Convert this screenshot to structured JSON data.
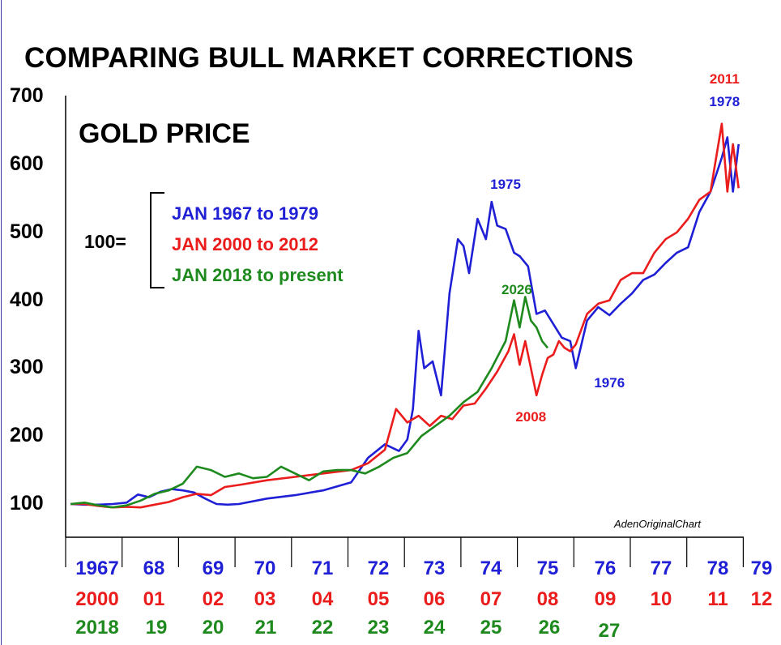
{
  "chart_data": {
    "type": "line",
    "title": "COMPARING BULL MARKET CORRECTIONS",
    "subtitle": "GOLD PRICE",
    "base_label": "100=",
    "credit": "AdenOriginalChart",
    "ylim": [
      100,
      700
    ],
    "yticks": [
      "100",
      "200",
      "300",
      "400",
      "500",
      "600",
      "700"
    ],
    "xlim": [
      0,
      12
    ],
    "grid": false,
    "legend_placement": "upper-left",
    "x_tick_rows": [
      {
        "color": "#1f1fd6",
        "labels": [
          "1967",
          "68",
          "69",
          "70",
          "71",
          "72",
          "73",
          "74",
          "75",
          "76",
          "77",
          "78",
          "79"
        ]
      },
      {
        "color": "#ea1c1c",
        "labels": [
          "2000",
          "01",
          "02",
          "03",
          "04",
          "05",
          "06",
          "07",
          "08",
          "09",
          "10",
          "11",
          "12"
        ]
      },
      {
        "color": "#1e8a1e",
        "labels": [
          "2018",
          "19",
          "20",
          "21",
          "22",
          "23",
          "24",
          "25",
          "26",
          "27"
        ]
      }
    ],
    "series": [
      {
        "name": "JAN 1967 to 1979",
        "color": "#1f1fd6",
        "x": [
          0,
          0.25,
          0.5,
          0.75,
          1.0,
          1.2,
          1.4,
          1.6,
          1.8,
          2.0,
          2.2,
          2.4,
          2.6,
          2.8,
          3.0,
          3.5,
          4.0,
          4.5,
          5.0,
          5.3,
          5.6,
          5.85,
          6.0,
          6.1,
          6.2,
          6.3,
          6.45,
          6.6,
          6.75,
          6.9,
          7.0,
          7.1,
          7.25,
          7.4,
          7.5,
          7.6,
          7.75,
          7.9,
          8.0,
          8.15,
          8.3,
          8.45,
          8.6,
          8.75,
          8.9,
          9.0,
          9.2,
          9.4,
          9.6,
          9.8,
          10.0,
          10.2,
          10.4,
          10.6,
          10.8,
          11.0,
          11.2,
          11.4,
          11.6,
          11.7,
          11.8,
          11.9
        ],
        "values": [
          100,
          99,
          99,
          100,
          102,
          114,
          110,
          118,
          122,
          120,
          117,
          108,
          100,
          99,
          100,
          108,
          113,
          120,
          132,
          168,
          188,
          178,
          195,
          240,
          355,
          300,
          310,
          260,
          410,
          490,
          480,
          440,
          520,
          490,
          545,
          510,
          505,
          470,
          465,
          450,
          380,
          385,
          365,
          345,
          340,
          300,
          370,
          390,
          378,
          395,
          410,
          430,
          438,
          455,
          470,
          478,
          530,
          560,
          610,
          640,
          560,
          630
        ]
      },
      {
        "name": "JAN 2000 to 2012",
        "color": "#ea1c1c",
        "x": [
          0,
          0.25,
          0.5,
          0.75,
          1.0,
          1.25,
          1.5,
          1.75,
          2.0,
          2.25,
          2.5,
          2.75,
          3.0,
          3.5,
          4.0,
          4.5,
          5.0,
          5.3,
          5.6,
          5.8,
          6.0,
          6.2,
          6.4,
          6.6,
          6.8,
          7.0,
          7.2,
          7.4,
          7.6,
          7.8,
          7.9,
          8.0,
          8.1,
          8.2,
          8.3,
          8.4,
          8.5,
          8.6,
          8.7,
          8.8,
          8.9,
          9.0,
          9.2,
          9.4,
          9.6,
          9.8,
          10.0,
          10.2,
          10.4,
          10.6,
          10.8,
          11.0,
          11.2,
          11.4,
          11.6,
          11.7,
          11.8,
          11.9
        ],
        "values": [
          100,
          100,
          97,
          95,
          96,
          95,
          99,
          103,
          110,
          115,
          113,
          125,
          128,
          135,
          140,
          145,
          150,
          160,
          180,
          240,
          220,
          230,
          215,
          230,
          225,
          245,
          248,
          270,
          295,
          325,
          350,
          305,
          340,
          300,
          260,
          290,
          315,
          320,
          340,
          330,
          325,
          335,
          380,
          395,
          400,
          430,
          440,
          440,
          470,
          490,
          500,
          520,
          548,
          560,
          660,
          560,
          630,
          565
        ]
      },
      {
        "name": "JAN 2018 to present",
        "color": "#1e8a1e",
        "x": [
          0,
          0.25,
          0.5,
          0.75,
          1.0,
          1.25,
          1.5,
          1.75,
          2.0,
          2.25,
          2.5,
          2.75,
          3.0,
          3.25,
          3.5,
          3.75,
          4.0,
          4.25,
          4.5,
          4.75,
          5.0,
          5.25,
          5.5,
          5.75,
          6.0,
          6.25,
          6.5,
          6.75,
          7.0,
          7.25,
          7.5,
          7.75,
          7.9,
          8.0,
          8.1,
          8.2,
          8.3,
          8.4,
          8.5
        ],
        "values": [
          100,
          102,
          98,
          95,
          98,
          105,
          115,
          120,
          130,
          155,
          150,
          140,
          145,
          138,
          140,
          155,
          145,
          135,
          148,
          150,
          150,
          145,
          155,
          168,
          175,
          200,
          215,
          230,
          250,
          265,
          300,
          340,
          400,
          360,
          405,
          370,
          360,
          340,
          330
        ]
      }
    ],
    "annotations": [
      {
        "text": "1975",
        "color": "#1f1fd6",
        "x": 7.75,
        "y": 570
      },
      {
        "text": "2026",
        "color": "#1e8a1e",
        "x": 7.95,
        "y": 415
      },
      {
        "text": "1976",
        "color": "#1f1fd6",
        "x": 9.6,
        "y": 278
      },
      {
        "text": "2008",
        "color": "#ea1c1c",
        "x": 8.2,
        "y": 228
      },
      {
        "text": "2011",
        "color": "#ea1c1c",
        "x": 11.65,
        "y": 725
      },
      {
        "text": "1978",
        "color": "#1f1fd6",
        "x": 11.65,
        "y": 692
      }
    ]
  }
}
